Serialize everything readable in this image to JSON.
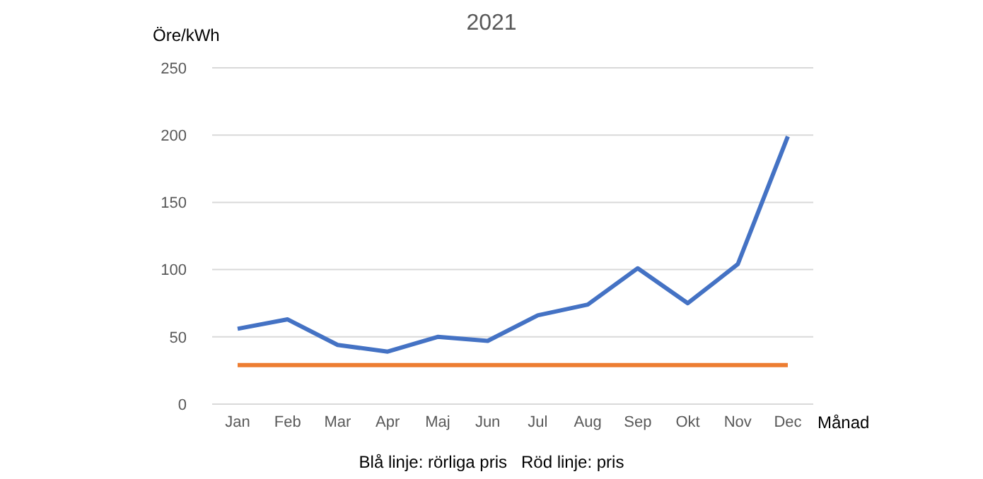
{
  "chart_data": {
    "type": "line",
    "title": "2021",
    "ylabel": "Öre/kWh",
    "xlabel": "Månad",
    "categories": [
      "Jan",
      "Feb",
      "Mar",
      "Apr",
      "Maj",
      "Jun",
      "Jul",
      "Aug",
      "Sep",
      "Okt",
      "Nov",
      "Dec"
    ],
    "series": [
      {
        "color": "#4472c4",
        "values": [
          56,
          63,
          44,
          39,
          50,
          47,
          66,
          74,
          101,
          75,
          104,
          199
        ]
      },
      {
        "color": "#ed7d31",
        "values": [
          29,
          29,
          29,
          29,
          29,
          29,
          29,
          29,
          29,
          29,
          29,
          29
        ]
      }
    ],
    "ylim": [
      0,
      250
    ],
    "yticks": [
      0,
      50,
      100,
      150,
      200,
      250
    ],
    "grid": "y",
    "marker": "none",
    "line_style": "solid",
    "annotations": [
      "Blå linje: rörliga pris   Röd linje: pris"
    ]
  }
}
